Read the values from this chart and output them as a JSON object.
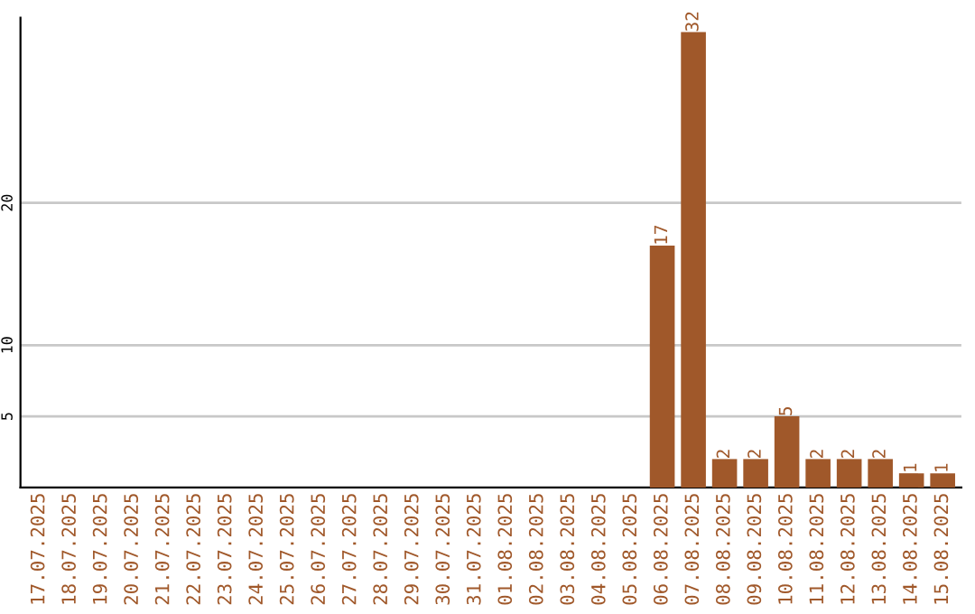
{
  "chart_data": {
    "type": "bar",
    "categories": [
      "17.07.2025",
      "18.07.2025",
      "19.07.2025",
      "20.07.2025",
      "21.07.2025",
      "22.07.2025",
      "23.07.2025",
      "24.07.2025",
      "25.07.2025",
      "26.07.2025",
      "27.07.2025",
      "28.07.2025",
      "29.07.2025",
      "30.07.2025",
      "31.07.2025",
      "01.08.2025",
      "02.08.2025",
      "03.08.2025",
      "04.08.2025",
      "05.08.2025",
      "06.08.2025",
      "07.08.2025",
      "08.08.2025",
      "09.08.2025",
      "10.08.2025",
      "11.08.2025",
      "12.08.2025",
      "13.08.2025",
      "14.08.2025",
      "15.08.2025"
    ],
    "values": [
      0,
      0,
      0,
      0,
      0,
      0,
      0,
      0,
      0,
      0,
      0,
      0,
      0,
      0,
      0,
      0,
      0,
      0,
      0,
      0,
      17,
      32,
      2,
      2,
      5,
      2,
      2,
      2,
      1,
      1
    ],
    "value_labels": [
      null,
      null,
      null,
      null,
      null,
      null,
      null,
      null,
      null,
      null,
      null,
      null,
      null,
      null,
      null,
      null,
      null,
      null,
      null,
      null,
      "17",
      "32",
      "2",
      "2",
      "5",
      "2",
      "2",
      "2",
      "1",
      "1"
    ],
    "color": "#a0582a",
    "ylim": [
      0,
      33
    ],
    "yticks": [
      5,
      10,
      20
    ],
    "grid": "y"
  }
}
